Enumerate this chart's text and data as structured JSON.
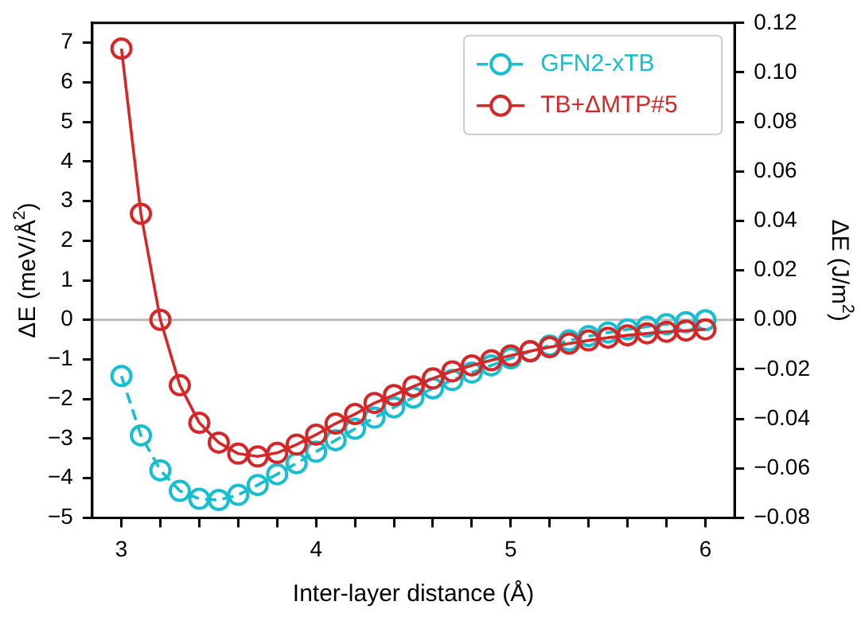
{
  "chart_data": {
    "type": "line",
    "xlabel": "Inter-layer distance (Å)",
    "ylabel": "ΔE (meV/Å$^{2}$)",
    "y2label": "ΔE (J/m$^{2}$)",
    "x": [
      3.0,
      3.1,
      3.2,
      3.3,
      3.4,
      3.5,
      3.6,
      3.7,
      3.8,
      3.9,
      4.0,
      4.1,
      4.2,
      4.3,
      4.4,
      4.5,
      4.6,
      4.7,
      4.8,
      4.9,
      5.0,
      5.1,
      5.2,
      5.3,
      5.4,
      5.5,
      5.6,
      5.7,
      5.8,
      5.9,
      6.0
    ],
    "series": [
      {
        "name": "GFN2-xTB",
        "color": "#17becf",
        "line_style": "dashed",
        "values": [
          -1.42,
          -2.92,
          -3.8,
          -4.32,
          -4.52,
          -4.55,
          -4.42,
          -4.17,
          -3.9,
          -3.62,
          -3.33,
          -3.04,
          -2.75,
          -2.47,
          -2.21,
          -1.96,
          -1.73,
          -1.52,
          -1.33,
          -1.15,
          -0.97,
          -0.8,
          -0.65,
          -0.52,
          -0.41,
          -0.32,
          -0.24,
          -0.17,
          -0.11,
          -0.06,
          -0.01
        ]
      },
      {
        "name": "TB+ΔMTP#5",
        "color": "#d62728",
        "line_style": "solid",
        "values": [
          6.85,
          2.68,
          0.0,
          -1.65,
          -2.6,
          -3.1,
          -3.38,
          -3.45,
          -3.36,
          -3.15,
          -2.9,
          -2.62,
          -2.38,
          -2.1,
          -1.9,
          -1.68,
          -1.48,
          -1.3,
          -1.15,
          -1.02,
          -0.9,
          -0.79,
          -0.69,
          -0.6,
          -0.52,
          -0.45,
          -0.39,
          -0.34,
          -0.3,
          -0.27,
          -0.24
        ]
      }
    ],
    "xlim": [
      2.85,
      6.15
    ],
    "xticks": [
      3,
      {
        "value": 3.2,
        "label": null
      },
      {
        "value": 3.4,
        "label": null
      },
      {
        "value": 3.6,
        "label": null
      },
      {
        "value": 3.8,
        "label": null
      },
      4,
      {
        "value": 4.2,
        "label": null
      },
      {
        "value": 4.4,
        "label": null
      },
      {
        "value": 4.6,
        "label": null
      },
      {
        "value": 4.8,
        "label": null
      },
      5,
      {
        "value": 5.2,
        "label": null
      },
      {
        "value": 5.4,
        "label": null
      },
      {
        "value": 5.6,
        "label": null
      },
      {
        "value": 5.8,
        "label": null
      },
      6
    ],
    "ylim": [
      -5,
      7.5
    ],
    "yticks": [
      {
        "value": -5,
        "label": "−5"
      },
      {
        "value": -4,
        "label": "−4"
      },
      {
        "value": -3,
        "label": "−3"
      },
      {
        "value": -2,
        "label": "−2"
      },
      {
        "value": -1,
        "label": "−1"
      },
      0,
      1,
      2,
      3,
      4,
      5,
      6,
      7
    ],
    "y2lim": [
      -0.08,
      0.12
    ],
    "y2ticks": [
      {
        "value": -0.08,
        "label": "−0.08"
      },
      {
        "value": -0.06,
        "label": "−0.06"
      },
      {
        "value": -0.04,
        "label": "−0.04"
      },
      {
        "value": -0.02,
        "label": "−0.02"
      },
      {
        "value": 0,
        "label": "0.00"
      },
      {
        "value": 0.02,
        "label": "0.02"
      },
      {
        "value": 0.04,
        "label": "0.04"
      },
      {
        "value": 0.06,
        "label": "0.06"
      },
      {
        "value": 0.08,
        "label": "0.08"
      },
      {
        "value": 0.1,
        "label": "0.10"
      },
      {
        "value": 0.12,
        "label": "0.12"
      }
    ],
    "ref_lines": [
      {
        "axis": "y",
        "value": 0,
        "color": "#bbbbbb"
      }
    ],
    "marker": "circle",
    "legend": "top right",
    "grid": false
  }
}
